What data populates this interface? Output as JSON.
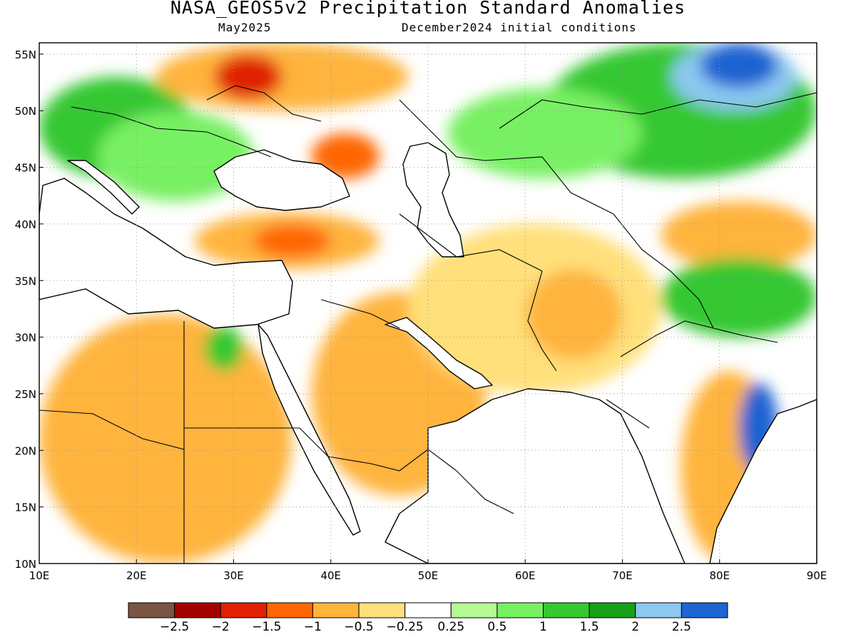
{
  "header": {
    "title": "NASA_GEOS5v2 Precipitation Standard Anomalies",
    "valid_month": "May2025",
    "init_conditions": "December2024 initial conditions"
  },
  "map": {
    "lon_range": [
      10,
      90
    ],
    "lat_range": [
      10,
      56
    ],
    "lon_ticks": [
      "10E",
      "20E",
      "30E",
      "40E",
      "50E",
      "60E",
      "70E",
      "80E",
      "90E"
    ],
    "lat_ticks": [
      "10N",
      "15N",
      "20N",
      "25N",
      "30N",
      "35N",
      "40N",
      "45N",
      "50N",
      "55N"
    ],
    "grid": "dotted"
  },
  "colorbar": {
    "colors": [
      "#7a5543",
      "#a50000",
      "#e02000",
      "#ff6600",
      "#ffb43c",
      "#ffe07a",
      "#ffffff",
      "#b4fa96",
      "#78f064",
      "#36c832",
      "#18a018",
      "#8cc8f0",
      "#1e64d2"
    ],
    "labels": [
      "-2.5",
      "-2",
      "-1.5",
      "-1",
      "-0.5",
      "-0.25",
      "0.25",
      "0.5",
      "1",
      "1.5",
      "2",
      "2.5"
    ]
  },
  "regions": [
    {
      "name": "russia-wet-northeast",
      "color": "#36c832",
      "lon": [
        62,
        90
      ],
      "lat": [
        44,
        56
      ]
    },
    {
      "name": "siberia-very-wet",
      "color": "#8cc8f0",
      "lon": [
        75,
        88
      ],
      "lat": [
        50,
        56
      ]
    },
    {
      "name": "siberia-extreme-wet",
      "color": "#1e64d2",
      "lon": [
        78,
        86
      ],
      "lat": [
        52,
        56
      ]
    },
    {
      "name": "central-europe-wet",
      "color": "#36c832",
      "lon": [
        10,
        26
      ],
      "lat": [
        44,
        53
      ]
    },
    {
      "name": "balkans-wet",
      "color": "#78f064",
      "lon": [
        16,
        32
      ],
      "lat": [
        42,
        50
      ]
    },
    {
      "name": "ukraine-dry",
      "color": "#ffb43c",
      "lon": [
        22,
        48
      ],
      "lat": [
        50,
        56
      ]
    },
    {
      "name": "belarus-very-dry",
      "color": "#e02000",
      "lon": [
        28,
        35
      ],
      "lat": [
        51,
        55
      ]
    },
    {
      "name": "volga-dry",
      "color": "#ff6600",
      "lon": [
        38,
        45
      ],
      "lat": [
        44,
        48
      ]
    },
    {
      "name": "turkey-dry",
      "color": "#ffb43c",
      "lon": [
        26,
        45
      ],
      "lat": [
        36,
        41
      ]
    },
    {
      "name": "turkey-very-dry",
      "color": "#ff6600",
      "lon": [
        32,
        40
      ],
      "lat": [
        37,
        40
      ]
    },
    {
      "name": "north-africa-dry",
      "color": "#ffb43c",
      "lon": [
        10,
        36
      ],
      "lat": [
        10,
        32
      ]
    },
    {
      "name": "arabia-dry",
      "color": "#ffb43c",
      "lon": [
        38,
        56
      ],
      "lat": [
        16,
        34
      ]
    },
    {
      "name": "iran-dry",
      "color": "#ffe07a",
      "lon": [
        48,
        74
      ],
      "lat": [
        25,
        40
      ]
    },
    {
      "name": "afghanistan-dry",
      "color": "#ffb43c",
      "lon": [
        60,
        70
      ],
      "lat": [
        28,
        36
      ]
    },
    {
      "name": "sudan-wet-spot",
      "color": "#36c832",
      "lon": [
        27,
        31
      ],
      "lat": [
        27,
        31
      ]
    },
    {
      "name": "china-dry-band",
      "color": "#ffb43c",
      "lon": [
        74,
        90
      ],
      "lat": [
        36,
        42
      ]
    },
    {
      "name": "himalaya-wet",
      "color": "#36c832",
      "lon": [
        74,
        90
      ],
      "lat": [
        30,
        37
      ]
    },
    {
      "name": "india-east-dry",
      "color": "#ffb43c",
      "lon": [
        76,
        86
      ],
      "lat": [
        10,
        27
      ]
    },
    {
      "name": "bay-bengal-coast-wet",
      "color": "#1e64d2",
      "lon": [
        82,
        86
      ],
      "lat": [
        18,
        26
      ]
    },
    {
      "name": "kazakh-wet",
      "color": "#78f064",
      "lon": [
        52,
        72
      ],
      "lat": [
        44,
        52
      ]
    }
  ]
}
